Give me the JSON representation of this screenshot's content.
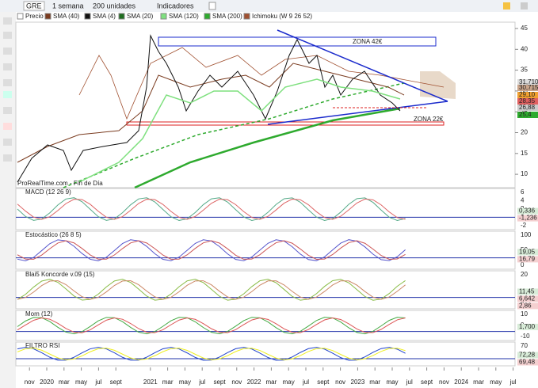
{
  "toolbar": {
    "symbol": "GRE",
    "period": "1 semana",
    "units": "200 unidades",
    "indicators": "Indicadores"
  },
  "legend": [
    "Precio",
    "SMA (40)",
    "SMA (4)",
    "SMA (20)",
    "SMA (120)",
    "SMA (200)",
    "Ichimoku (W 9 26 52)"
  ],
  "main_panel": {
    "yticks": [
      "45",
      "40",
      "35",
      "30",
      "25",
      "20",
      "15",
      "10"
    ],
    "price_labels": [
      "31,710",
      "30,715",
      "29,10",
      "28,35",
      "26,88",
      "25,4"
    ],
    "annotations": [
      "ZONA 42€",
      "ZONA 22€"
    ],
    "watermark": "ProRealTime.com - Fin de Día"
  },
  "panels": [
    {
      "title": "MACD (12 26 9)",
      "yticks": [
        "6",
        "4",
        "2",
        "0",
        "-2"
      ],
      "value_labels": [
        "0,336",
        "-1,236"
      ]
    },
    {
      "title": "Estocástico (26 8 5)",
      "yticks": [
        "100",
        "50",
        "0"
      ],
      "value_labels": [
        "19,05",
        "16,79"
      ]
    },
    {
      "title": "Blai5 Koncorde v.09 (15)",
      "yticks": [
        "20",
        "0"
      ],
      "value_labels": [
        "11,45",
        "6,642",
        "2,86"
      ]
    },
    {
      "title": "Mom (12)",
      "yticks": [
        "10",
        "0",
        "-10"
      ],
      "value_labels": [
        "1,700"
      ]
    },
    {
      "title": "FILTRO RSI",
      "yticks": [
        "70"
      ],
      "value_labels": [
        "72,28",
        "69,48"
      ]
    }
  ],
  "x_axis": [
    "nov",
    "2020",
    "mar",
    "may",
    "jul",
    "sept",
    "2021",
    "mar",
    "may",
    "jul",
    "sept",
    "nov",
    "2022",
    "mar",
    "may",
    "jul",
    "sept",
    "nov",
    "2023",
    "mar",
    "may",
    "jul",
    "sept",
    "nov",
    "2024",
    "mar",
    "may",
    "jul"
  ]
}
